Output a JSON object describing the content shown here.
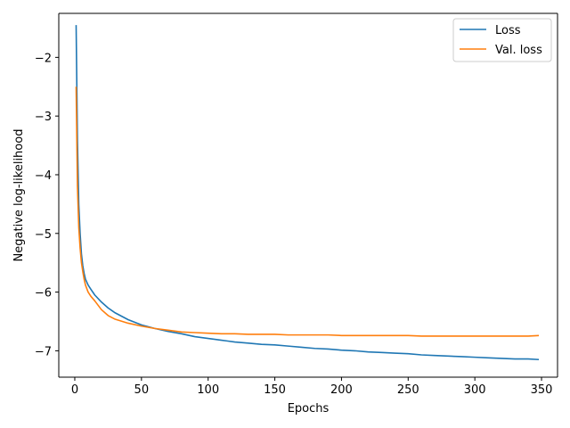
{
  "chart_data": {
    "type": "line",
    "xlabel": "Epochs",
    "ylabel": "Negative log-likelihood",
    "xlim": [
      -12,
      362
    ],
    "ylim": [
      -7.45,
      -1.25
    ],
    "xticks": [
      0,
      50,
      100,
      150,
      200,
      250,
      300,
      350
    ],
    "yticks": [
      -7,
      -6,
      -5,
      -4,
      -3,
      -2
    ],
    "ytick_labels": [
      "−7",
      "−6",
      "−5",
      "−4",
      "−3",
      "−2"
    ],
    "grid": false,
    "legend_position": "top-right",
    "series": [
      {
        "name": "Loss",
        "color": "#1f77b4",
        "x": [
          1,
          2,
          3,
          4,
          5,
          6,
          7,
          8,
          10,
          12,
          15,
          20,
          25,
          30,
          40,
          50,
          60,
          70,
          80,
          90,
          100,
          110,
          120,
          130,
          140,
          150,
          160,
          170,
          180,
          190,
          200,
          210,
          220,
          230,
          240,
          250,
          260,
          270,
          280,
          290,
          300,
          310,
          320,
          330,
          340,
          348
        ],
        "y": [
          -1.45,
          -3.4,
          -4.5,
          -5.0,
          -5.35,
          -5.55,
          -5.68,
          -5.78,
          -5.88,
          -5.95,
          -6.05,
          -6.17,
          -6.27,
          -6.35,
          -6.47,
          -6.56,
          -6.62,
          -6.67,
          -6.71,
          -6.76,
          -6.79,
          -6.82,
          -6.85,
          -6.87,
          -6.89,
          -6.9,
          -6.92,
          -6.94,
          -6.96,
          -6.97,
          -6.99,
          -7.0,
          -7.02,
          -7.03,
          -7.04,
          -7.05,
          -7.07,
          -7.08,
          -7.09,
          -7.1,
          -7.11,
          -7.12,
          -7.13,
          -7.14,
          -7.14,
          -7.15
        ]
      },
      {
        "name": "Val. loss",
        "color": "#ff7f0e",
        "x": [
          1,
          2,
          3,
          4,
          5,
          6,
          7,
          8,
          10,
          12,
          15,
          20,
          25,
          30,
          40,
          50,
          60,
          70,
          80,
          90,
          100,
          110,
          120,
          130,
          140,
          150,
          160,
          170,
          180,
          190,
          200,
          210,
          220,
          230,
          240,
          250,
          260,
          270,
          280,
          290,
          300,
          310,
          320,
          330,
          340,
          348
        ],
        "y": [
          -2.5,
          -4.2,
          -4.9,
          -5.25,
          -5.5,
          -5.65,
          -5.78,
          -5.88,
          -6.0,
          -6.07,
          -6.15,
          -6.3,
          -6.4,
          -6.46,
          -6.53,
          -6.58,
          -6.62,
          -6.65,
          -6.68,
          -6.69,
          -6.7,
          -6.71,
          -6.71,
          -6.72,
          -6.72,
          -6.72,
          -6.73,
          -6.73,
          -6.73,
          -6.73,
          -6.74,
          -6.74,
          -6.74,
          -6.74,
          -6.74,
          -6.74,
          -6.75,
          -6.75,
          -6.75,
          -6.75,
          -6.75,
          -6.75,
          -6.75,
          -6.75,
          -6.75,
          -6.74
        ]
      }
    ]
  }
}
